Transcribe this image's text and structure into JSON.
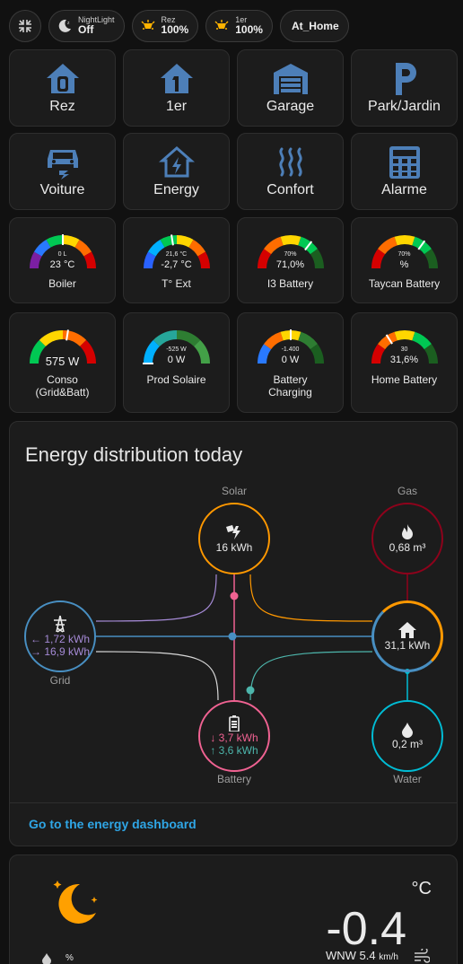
{
  "chips": {
    "nightlight": {
      "label": "NightLight",
      "value": "Off"
    },
    "rez": {
      "label": "Rez",
      "value": "100%"
    },
    "premier": {
      "label": "1er",
      "value": "100%"
    },
    "presence": {
      "value": "At_Home"
    }
  },
  "tiles": [
    {
      "label": "Rez",
      "icon": "house-zero-icon"
    },
    {
      "label": "1er",
      "icon": "house-one-icon"
    },
    {
      "label": "Garage",
      "icon": "garage-icon"
    },
    {
      "label": "Park/Jardin",
      "icon": "parking-icon"
    },
    {
      "label": "Voiture",
      "icon": "car-charging-icon"
    },
    {
      "label": "Energy",
      "icon": "house-lightning-icon"
    },
    {
      "label": "Confort",
      "icon": "heat-waves-icon"
    },
    {
      "label": "Alarme",
      "icon": "keypad-icon"
    }
  ],
  "gauges": [
    {
      "name": "Boiler",
      "sub": "0 L",
      "value": "23 °C",
      "level": 0.5
    },
    {
      "name": "T° Ext",
      "sub": "21,6 °C",
      "value": "-2,7 °C",
      "level": 0.45
    },
    {
      "name": "I3 Battery",
      "sub": "70%",
      "value": "71,0%",
      "level": 0.71
    },
    {
      "name": "Taycan Battery",
      "sub": "70%",
      "value": "%",
      "level": 0.7
    },
    {
      "name": "Conso\n(Grid&Batt)",
      "sub": "",
      "value": "575 W",
      "level": 0.55
    },
    {
      "name": "Prod Solaire",
      "sub": "-525 W",
      "value": "0 W",
      "level": 0.0
    },
    {
      "name": "Battery\nCharging",
      "sub": "-1.400",
      "value": "0 W",
      "level": 0.5
    },
    {
      "name": "Home Battery",
      "sub": "30",
      "value": "31,6%",
      "level": 0.32
    }
  ],
  "energy": {
    "title": "Energy distribution today",
    "solar": {
      "label": "Solar",
      "value": "16 kWh"
    },
    "gas": {
      "label": "Gas",
      "value": "0,68 m³"
    },
    "grid": {
      "label": "Grid",
      "in": "← 1,72 kWh",
      "out": "→ 16,9 kWh"
    },
    "home": {
      "value": "31,1 kWh"
    },
    "battery": {
      "label": "Battery",
      "in": "↓ 3,7 kWh",
      "out": "↑ 3,6 kWh"
    },
    "water": {
      "label": "Water",
      "value": "0,2 m³"
    },
    "link": "Go to the energy dashboard"
  },
  "weather": {
    "unit": "°C",
    "temperature": "-0.4",
    "wind": "WNW 5.4",
    "wind_unit": "km/h",
    "humidity": "%",
    "icon": "moon-icon"
  },
  "colors": {
    "accent_blue": "#4d7fb8",
    "solar": "#ff9800",
    "gas": "#8e021b",
    "grid": "#488fc2",
    "battery": "#f06292",
    "water": "#00bcd4",
    "link": "#2fa6e6"
  }
}
